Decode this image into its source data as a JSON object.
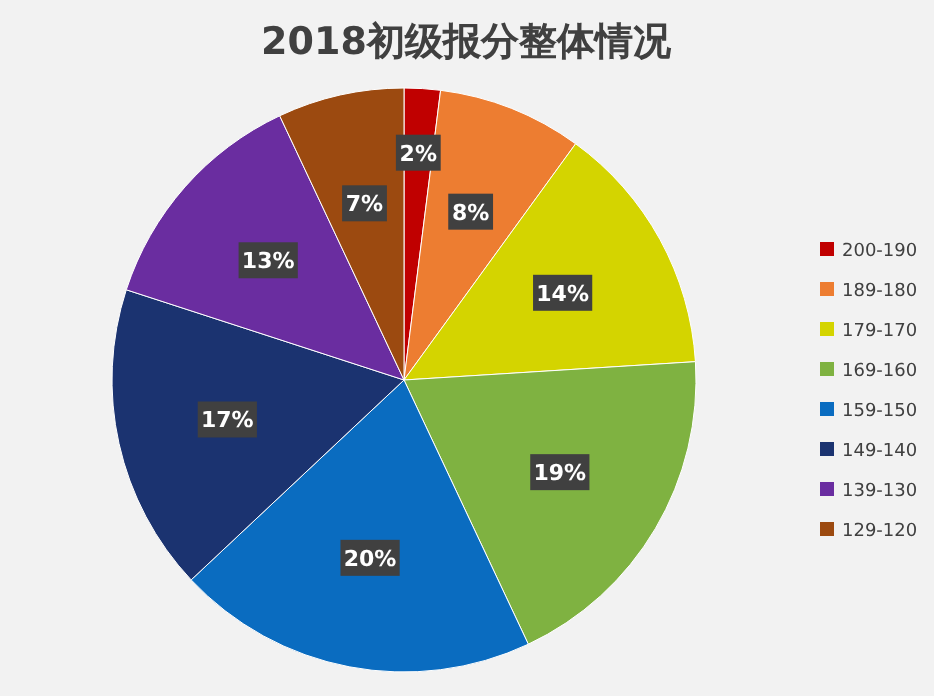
{
  "chart_data": {
    "type": "pie",
    "title": "2018初级报分整体情况",
    "categories": [
      "200-190",
      "189-180",
      "179-170",
      "169-160",
      "159-150",
      "149-140",
      "139-130",
      "129-120"
    ],
    "values": [
      2,
      8,
      14,
      19,
      20,
      17,
      13,
      7
    ],
    "colors": [
      "#c00000",
      "#ed7d31",
      "#d4d400",
      "#7fb241",
      "#0a6cc0",
      "#1b3370",
      "#6a2da0",
      "#9c4a10"
    ],
    "value_labels": [
      "2%",
      "8%",
      "14%",
      "19%",
      "20%",
      "17%",
      "13%",
      "7%"
    ],
    "legend": "right"
  }
}
